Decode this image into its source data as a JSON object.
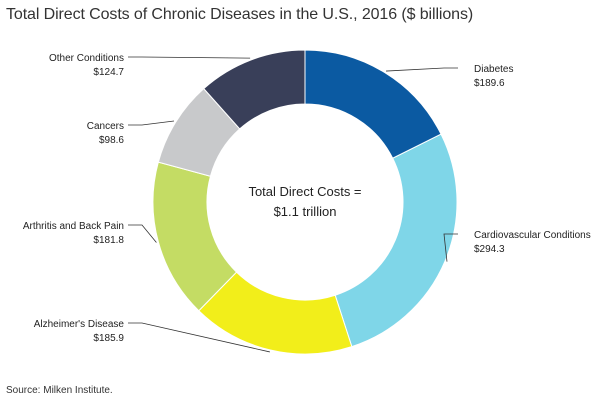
{
  "chart_data": {
    "type": "pie",
    "title": "Total Direct Costs of Chronic Diseases in the U.S., 2016 ($ billions)",
    "center_label": [
      "Total Direct Costs =",
      "$1.1 trillion"
    ],
    "source": "Source: Milken Institute.",
    "slices": [
      {
        "name": "Diabetes",
        "value": 189.6,
        "value_label": "$189.6",
        "color": "#0b5aa2"
      },
      {
        "name": "Cardiovascular Conditions",
        "value": 294.3,
        "value_label": "$294.3",
        "color": "#7fd6e8"
      },
      {
        "name": "Alzheimer's Disease",
        "value": 185.9,
        "value_label": "$185.9",
        "color": "#f2ee1a"
      },
      {
        "name": "Arthritis and Back Pain",
        "value": 181.8,
        "value_label": "$181.8",
        "color": "#c4dc64"
      },
      {
        "name": "Cancers",
        "value": 98.6,
        "value_label": "$98.6",
        "color": "#c8c9cb"
      },
      {
        "name": "Other Conditions",
        "value": 124.7,
        "value_label": "$124.7",
        "color": "#393f59"
      }
    ]
  }
}
